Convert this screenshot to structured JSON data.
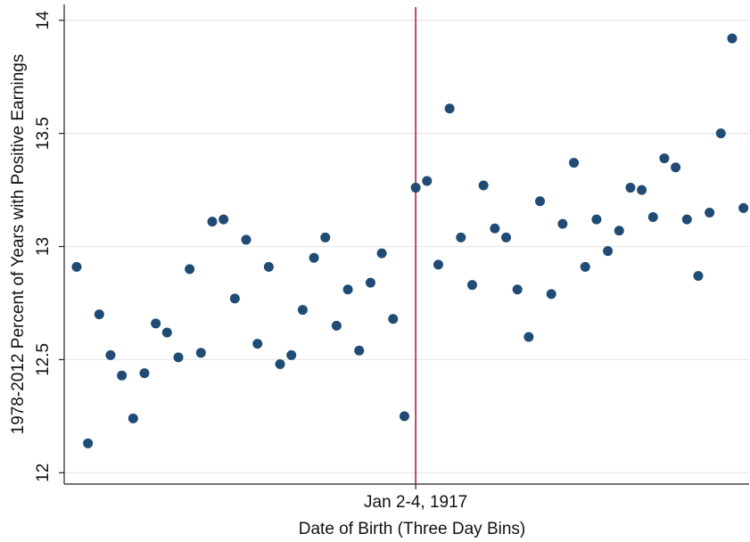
{
  "chart_data": {
    "type": "scatter",
    "y_label": "1978-2012 Percent of Years with Positive Earnings",
    "x_label": "Date of Birth (Three Day Bins)",
    "x": [
      -30,
      -29,
      -28,
      -27,
      -26,
      -25,
      -24,
      -23,
      -22,
      -21,
      -20,
      -19,
      -18,
      -17,
      -16,
      -15,
      -14,
      -13,
      -12,
      -11,
      -10,
      -9,
      -8,
      -7,
      -6,
      -5,
      -4,
      -3,
      -2,
      -1,
      0,
      1,
      2,
      3,
      4,
      5,
      6,
      7,
      8,
      9,
      10,
      11,
      12,
      13,
      14,
      15,
      16,
      17,
      18,
      19,
      20,
      21,
      22,
      23,
      24,
      25,
      26,
      27,
      28,
      29
    ],
    "values": [
      12.91,
      12.13,
      12.7,
      12.52,
      12.43,
      12.24,
      12.44,
      12.66,
      12.62,
      12.51,
      12.9,
      12.53,
      13.11,
      13.12,
      12.77,
      13.03,
      12.57,
      12.91,
      12.48,
      12.52,
      12.72,
      12.95,
      13.04,
      12.65,
      12.81,
      12.54,
      12.84,
      12.97,
      12.68,
      12.25,
      13.26,
      13.29,
      12.92,
      13.61,
      13.04,
      12.83,
      13.27,
      13.08,
      13.04,
      12.81,
      12.6,
      13.2,
      12.79,
      13.1,
      13.37,
      12.91,
      13.12,
      12.98,
      13.07,
      13.26,
      13.25,
      13.13,
      13.39,
      13.35,
      13.12,
      12.87,
      13.15,
      13.5,
      13.92,
      13.17
    ],
    "color": "#1f4b74",
    "cutoff": 0,
    "cutoff_color": "#b5213c",
    "xlim": [
      -31.1,
      29.5
    ],
    "xticks": [
      {
        "value": 0,
        "label": "Jan 2-4, 1917"
      }
    ],
    "ylim": [
      11.95,
      14.07
    ],
    "yticks": [
      12,
      12.5,
      13,
      13.5,
      14
    ],
    "grid": true
  }
}
